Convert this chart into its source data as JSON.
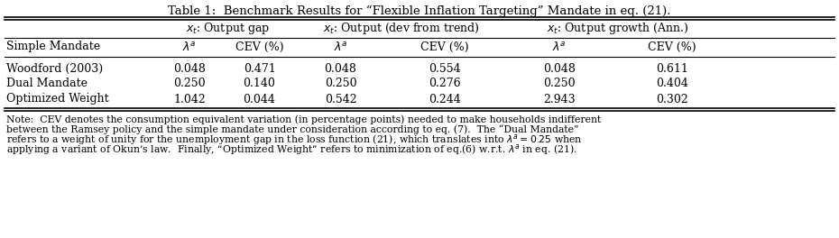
{
  "title": "Table 1:  Benchmark Results for “Flexible Inflation Targeting” Mandate in eq. (21).",
  "col_group_headers": [
    "$x_t$: Output gap",
    "$x_t$: Output (dev from trend)",
    "$x_t$: Output growth (Ann.)"
  ],
  "sub_headers": [
    "",
    "$\\lambda^a$",
    "CEV (%)",
    "$\\lambda^a$",
    "CEV (%)",
    "$\\lambda^a$",
    "CEV (%)"
  ],
  "row_label_header": "Simple Mandate",
  "rows": [
    [
      "Woodford (2003)",
      "0.048",
      "0.471",
      "0.048",
      "0.554",
      "0.048",
      "0.611"
    ],
    [
      "Dual Mandate",
      "0.250",
      "0.140",
      "0.250",
      "0.276",
      "0.250",
      "0.404"
    ],
    [
      "Optimized Weight",
      "1.042",
      "0.044",
      "0.542",
      "0.244",
      "2.943",
      "0.302"
    ]
  ],
  "note_lines": [
    "Note:  CEV denotes the consumption equivalent variation (in percentage points) needed to make households indifferent",
    "between the Ramsey policy and the simple mandate under consideration according to eq. (7).  The “Dual Mandate”",
    "refers to a weight of unity for the unemployment gap in the loss function (21), which translates into $\\lambda^a = 0.25$ when",
    "applying a variant of Okun’s law.  Finally, “Optimized Weight” refers to minimization of eq.(6) w.r.t. $\\lambda^a$ in eq. (21)."
  ],
  "background": "#ffffff",
  "font_size_title": 9.5,
  "font_size_header": 9.0,
  "font_size_body": 9.0,
  "font_size_note": 7.8
}
